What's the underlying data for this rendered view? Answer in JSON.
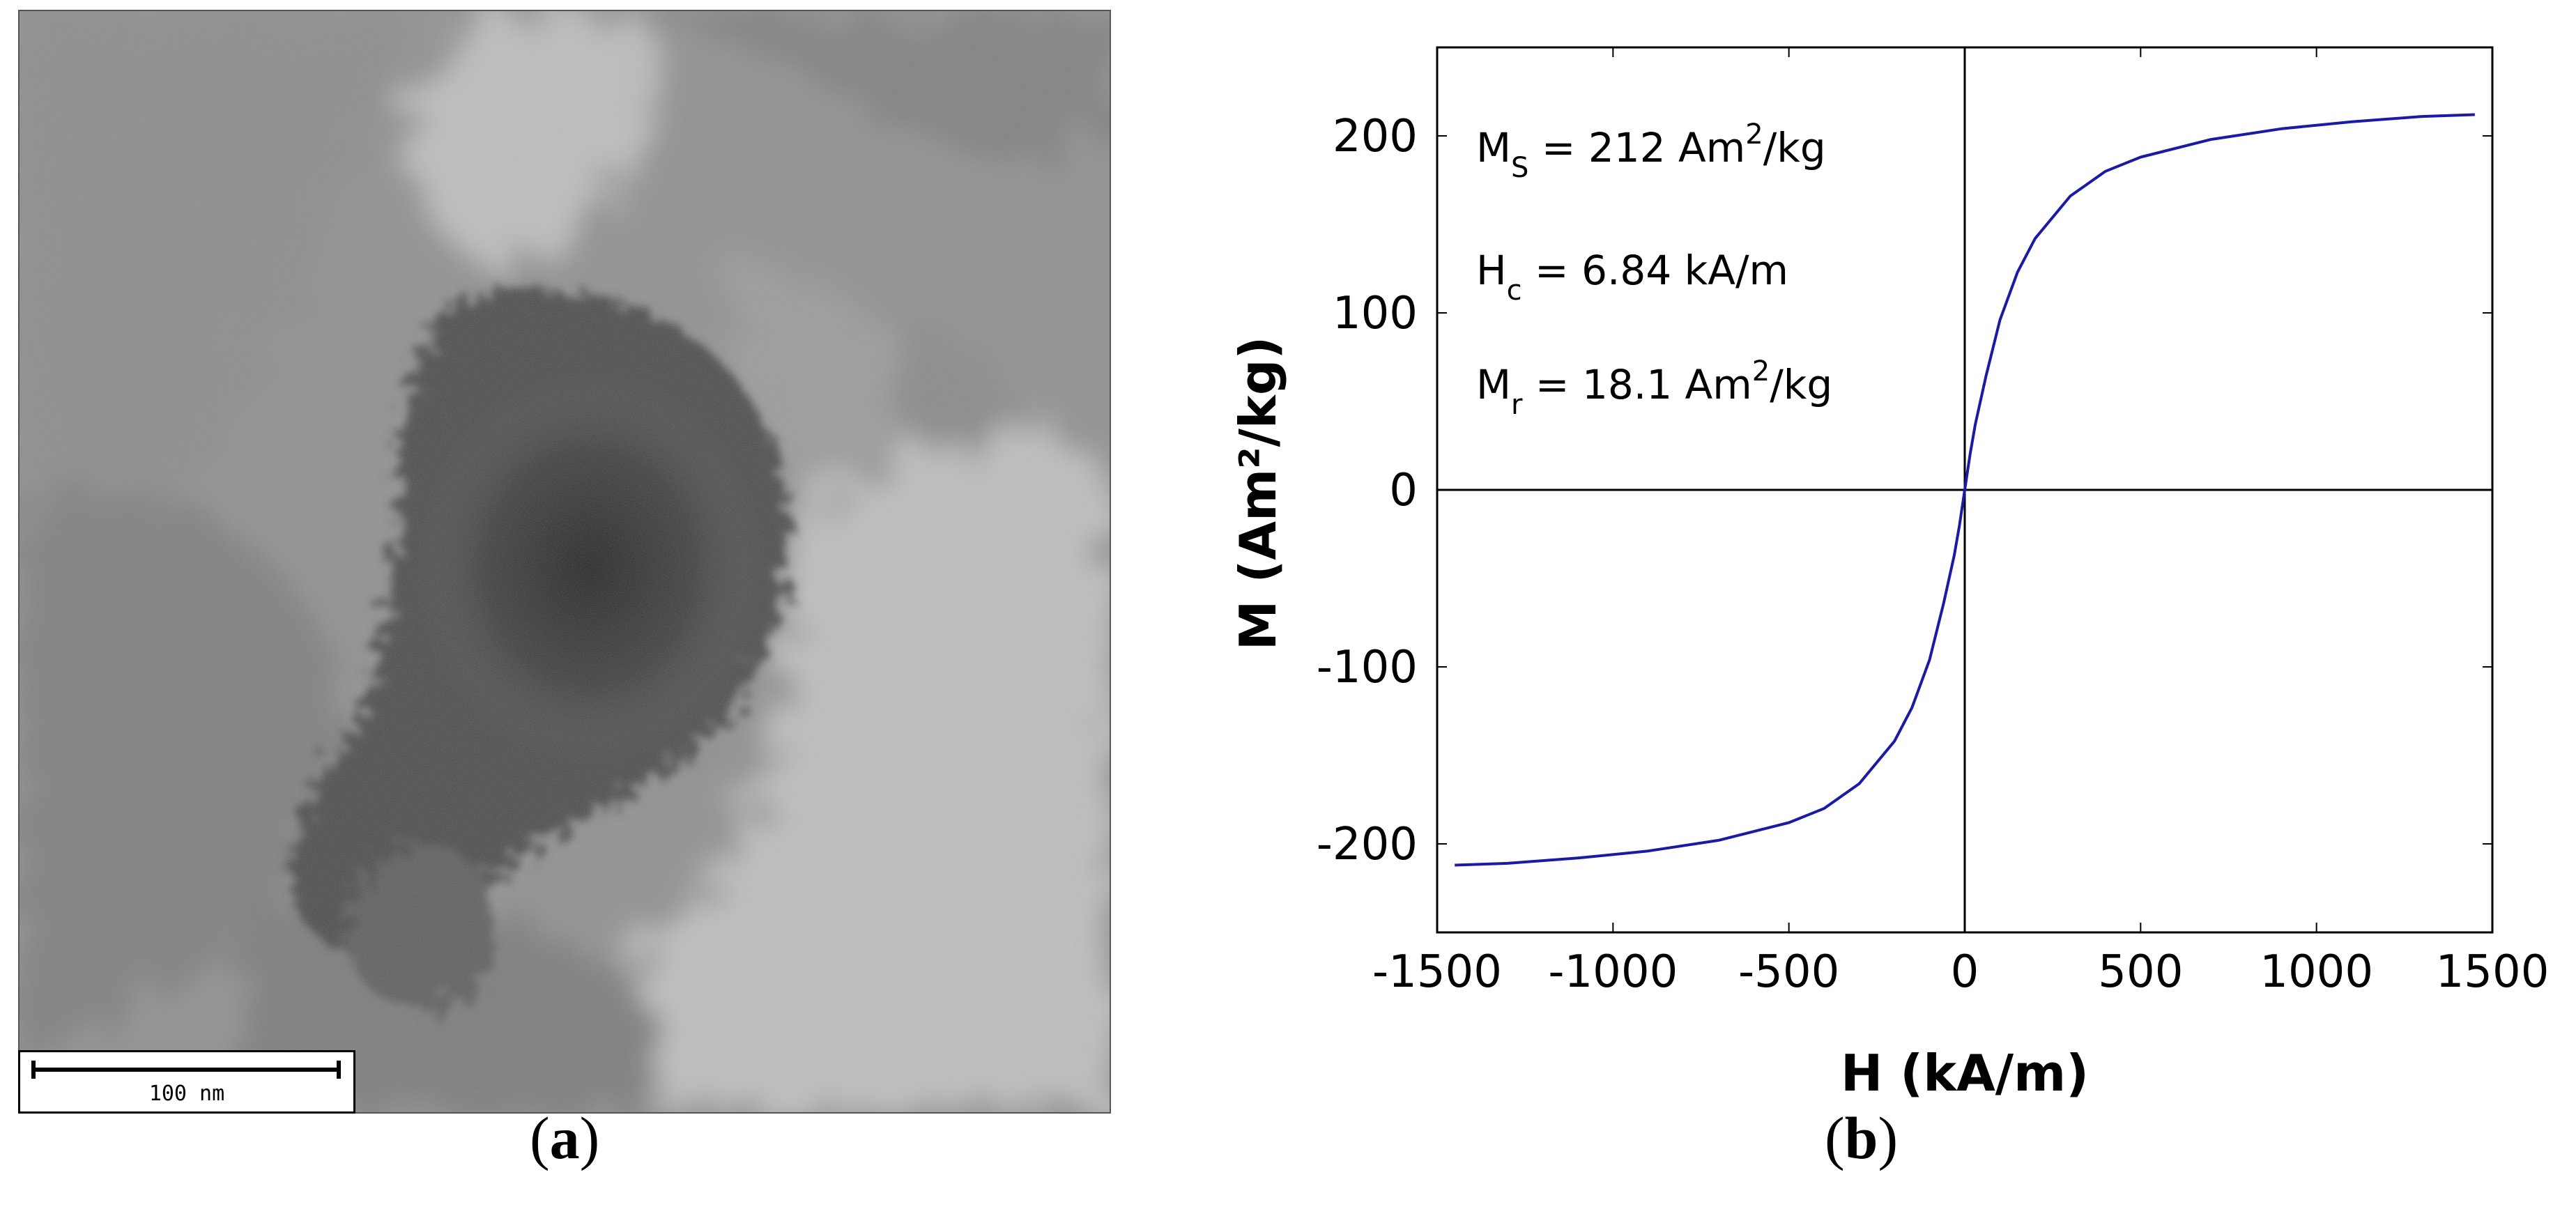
{
  "panel_a": {
    "caption_label": "a",
    "scale_bar_label": "100 nm"
  },
  "panel_b": {
    "caption_label": "b"
  },
  "chart_data": {
    "type": "line",
    "title": "",
    "xlabel": "H (kA/m)",
    "ylabel": "M (Am²/kg)",
    "xlim": [
      -1500,
      1500
    ],
    "ylim": [
      -250,
      250
    ],
    "x_ticks": [
      -1500,
      -1000,
      -500,
      0,
      500,
      1000,
      1500
    ],
    "y_ticks": [
      -200,
      -100,
      0,
      100,
      200
    ],
    "grid": false,
    "zero_lines": true,
    "legend": "none",
    "line_color": "#1a1aa6",
    "annotations": [
      {
        "symbol": "M",
        "subscript": "S",
        "value": "= 212 Am",
        "superscript": "2",
        "unit": "/kg"
      },
      {
        "symbol": "H",
        "subscript": "c",
        "value": "= 6.84 kA/m",
        "superscript": "",
        "unit": ""
      },
      {
        "symbol": "M",
        "subscript": "r",
        "value": "= 18.1 Am",
        "superscript": "2",
        "unit": "/kg"
      }
    ],
    "series": [
      {
        "x": [
          -1450,
          -1300,
          -1100,
          -900,
          -700,
          -500,
          -400,
          -300,
          -200,
          -150,
          -100,
          -60,
          -30,
          -15,
          0,
          15,
          30,
          60,
          100,
          150,
          200,
          300,
          400,
          500,
          700,
          900,
          1100,
          1300,
          1450
        ],
        "y": [
          -212,
          -211,
          -208,
          -204,
          -198,
          -188,
          -180,
          -166,
          -142,
          -123,
          -96,
          -64,
          -37,
          -20,
          0,
          20,
          37,
          64,
          96,
          123,
          142,
          166,
          180,
          188,
          198,
          204,
          208,
          211,
          212
        ]
      }
    ]
  }
}
